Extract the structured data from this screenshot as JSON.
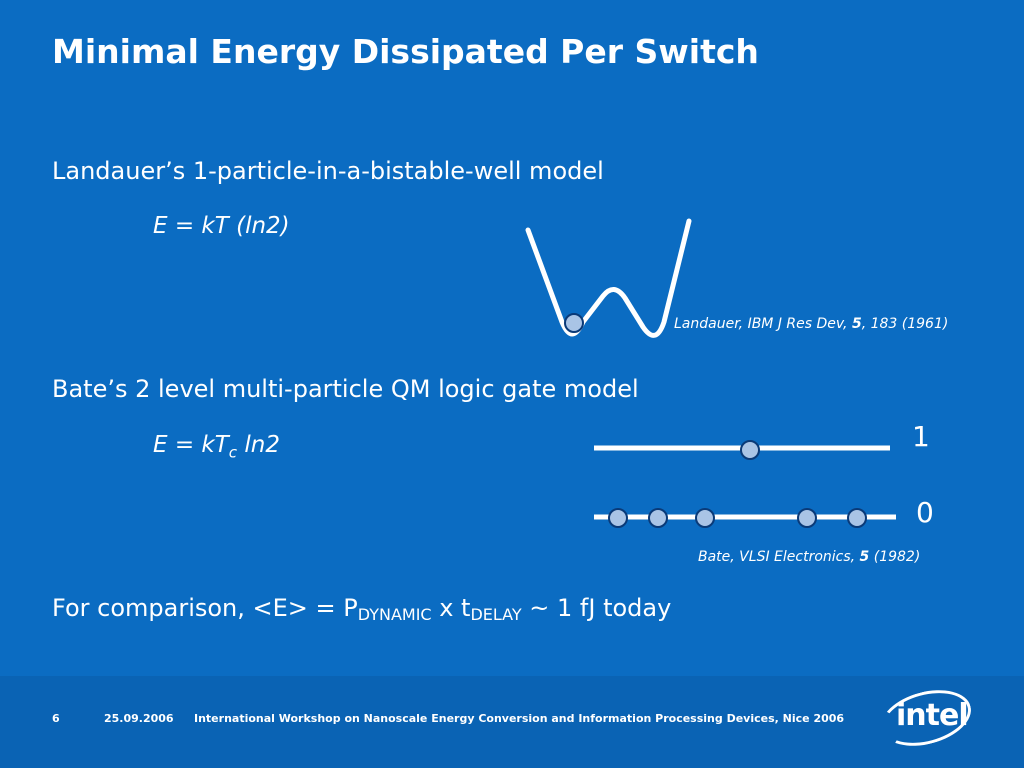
{
  "slide": {
    "title": "Minimal Energy Dissipated Per Switch",
    "landauer": {
      "heading": "Landauer’s 1-particle-in-a-bistable-well model",
      "formula": "E = kT (ln2)",
      "ref_prefix": "Landauer, IBM J Res Dev, ",
      "ref_volume": "5",
      "ref_suffix": ", 183 (1961)"
    },
    "bate": {
      "heading": "Bate’s 2 level multi-particle QM logic gate model",
      "formula_prefix": "E = kT",
      "formula_sub": "c",
      "formula_suffix": " ln2",
      "level_high": "1",
      "level_low": "0",
      "ref_prefix": "Bate, VLSI Electronics, ",
      "ref_volume": "5",
      "ref_suffix": " (1982)"
    },
    "comparison": {
      "prefix": "For comparison, <E> = P",
      "sub1": "DYNAMIC",
      "middle": " x t",
      "sub2": "DELAY",
      "suffix": " ~ 1 fJ today"
    }
  },
  "footer": {
    "page_number": "6",
    "date": "25.09.2006",
    "event": "International Workshop on Nanoscale Energy Conversion and Information Processing Devices, Nice 2006",
    "logo_text": "intel"
  },
  "colors": {
    "background": "#0b6cc2",
    "footer_band": "#0a63b4",
    "particle_fill": "#a9c4e6",
    "particle_stroke": "#0a3a78",
    "text": "#ffffff"
  }
}
